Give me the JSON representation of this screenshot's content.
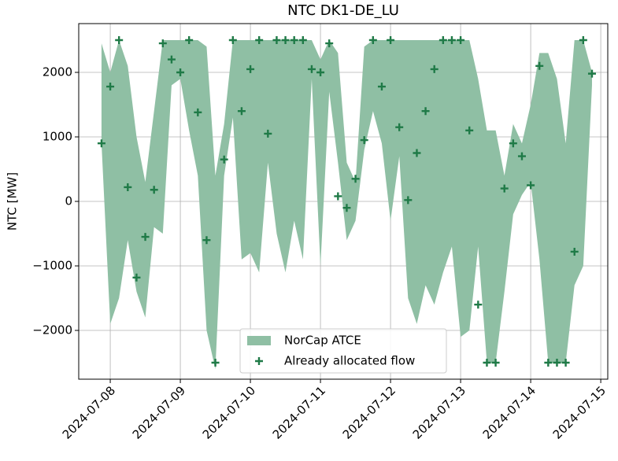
{
  "chart_data": {
    "type": "area",
    "title": "NTC DK1-DE_LU",
    "ylabel": "NTC [MW]",
    "x": [
      "2024-07-07 21:00",
      "2024-07-08 00:00",
      "2024-07-08 03:00",
      "2024-07-08 06:00",
      "2024-07-08 09:00",
      "2024-07-08 12:00",
      "2024-07-08 15:00",
      "2024-07-08 18:00",
      "2024-07-08 21:00",
      "2024-07-09 00:00",
      "2024-07-09 03:00",
      "2024-07-09 06:00",
      "2024-07-09 09:00",
      "2024-07-09 12:00",
      "2024-07-09 15:00",
      "2024-07-09 18:00",
      "2024-07-09 21:00",
      "2024-07-10 00:00",
      "2024-07-10 03:00",
      "2024-07-10 06:00",
      "2024-07-10 09:00",
      "2024-07-10 12:00",
      "2024-07-10 15:00",
      "2024-07-10 18:00",
      "2024-07-10 21:00",
      "2024-07-11 00:00",
      "2024-07-11 03:00",
      "2024-07-11 06:00",
      "2024-07-11 09:00",
      "2024-07-11 12:00",
      "2024-07-11 15:00",
      "2024-07-11 18:00",
      "2024-07-11 21:00",
      "2024-07-12 00:00",
      "2024-07-12 03:00",
      "2024-07-12 06:00",
      "2024-07-12 09:00",
      "2024-07-12 12:00",
      "2024-07-12 15:00",
      "2024-07-12 18:00",
      "2024-07-12 21:00",
      "2024-07-13 00:00",
      "2024-07-13 03:00",
      "2024-07-13 06:00",
      "2024-07-13 09:00",
      "2024-07-13 12:00",
      "2024-07-13 15:00",
      "2024-07-13 18:00",
      "2024-07-13 21:00",
      "2024-07-14 00:00",
      "2024-07-14 03:00",
      "2024-07-14 06:00",
      "2024-07-14 09:00",
      "2024-07-14 12:00",
      "2024-07-14 15:00",
      "2024-07-14 18:00",
      "2024-07-14 21:00"
    ],
    "series": [
      {
        "name": "NorCap ATCE",
        "type": "area",
        "color": "#8fbfa4",
        "upper": [
          2450,
          2000,
          2500,
          2100,
          1000,
          300,
          1400,
          2500,
          2500,
          2500,
          2500,
          2500,
          2400,
          400,
          1200,
          2500,
          2500,
          2500,
          2500,
          2500,
          2500,
          2500,
          2500,
          2500,
          2500,
          2200,
          2500,
          2300,
          600,
          300,
          2400,
          2500,
          2500,
          2500,
          2500,
          2500,
          2500,
          2500,
          2500,
          2500,
          2500,
          2500,
          2500,
          1900,
          1100,
          1100,
          400,
          1200,
          900,
          1500,
          2300,
          2300,
          1900,
          900,
          2500,
          2500,
          2000
        ],
        "lower": [
          900,
          -1900,
          -1500,
          -600,
          -1400,
          -1800,
          -400,
          -500,
          1800,
          1900,
          1100,
          400,
          -2000,
          -2600,
          400,
          1300,
          -900,
          -800,
          -1100,
          600,
          -500,
          -1100,
          -300,
          -900,
          1900,
          -1000,
          1700,
          600,
          -600,
          -300,
          800,
          1400,
          900,
          -300,
          700,
          -1500,
          -1900,
          -1300,
          -1600,
          -1100,
          -700,
          -2100,
          -2000,
          -700,
          -2500,
          -2500,
          -1400,
          -200,
          100,
          300,
          -900,
          -2500,
          -2500,
          -2500,
          -1300,
          -1000,
          1800
        ]
      },
      {
        "name": "Already allocated flow",
        "type": "scatter",
        "color": "#1f7a47",
        "values": [
          900,
          1780,
          2500,
          220,
          -1180,
          -550,
          180,
          2450,
          2200,
          2000,
          2500,
          1380,
          -600,
          -2500,
          650,
          2500,
          1400,
          2050,
          2500,
          1050,
          2500,
          2500,
          2500,
          2500,
          2050,
          2000,
          2450,
          80,
          -100,
          350,
          950,
          2500,
          1780,
          2500,
          1150,
          20,
          750,
          1400,
          2050,
          2500,
          2500,
          2500,
          1100,
          -1600,
          -2500,
          -2500,
          200,
          900,
          700,
          250,
          2100,
          -2500,
          -2500,
          -2500,
          -780,
          2500,
          1980
        ]
      }
    ],
    "xlim": [
      "2024-07-07 13:12",
      "2024-07-15 02:24"
    ],
    "xticks": [
      "2024-07-08",
      "2024-07-09",
      "2024-07-10",
      "2024-07-11",
      "2024-07-12",
      "2024-07-13",
      "2024-07-14",
      "2024-07-15"
    ],
    "ylim": [
      -2756,
      2756
    ],
    "yticks": [
      {
        "value": -2000,
        "label": "−2000"
      },
      {
        "value": -1000,
        "label": "−1000"
      },
      0,
      1000,
      2000
    ],
    "grid": true,
    "legend": "lower center"
  }
}
